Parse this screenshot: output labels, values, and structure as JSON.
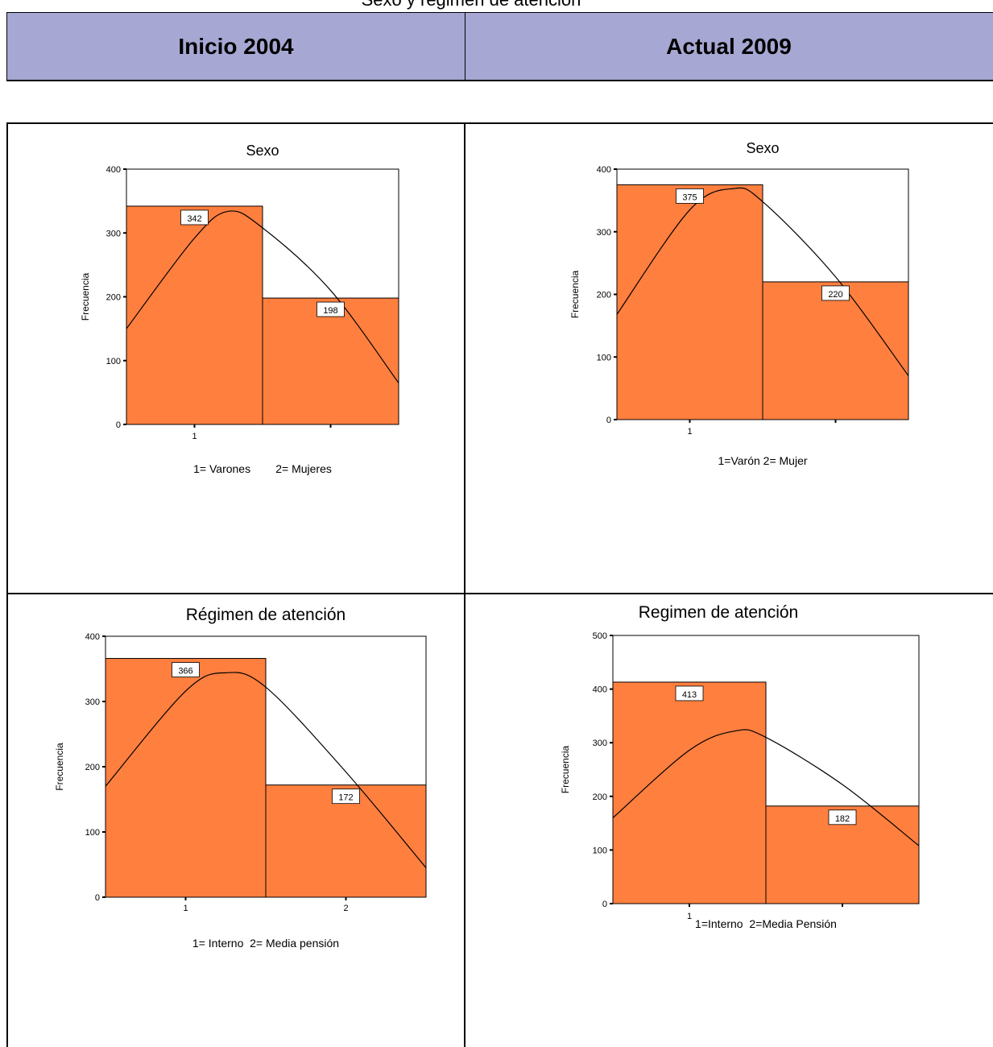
{
  "page_title": "Sexo y régimen de atención",
  "header": {
    "left": "Inicio 2004",
    "right": "Actual 2009"
  },
  "colors": {
    "header_bg": "#a7a7d3",
    "bar": "#ff7f3f",
    "line": "#000000"
  },
  "chart_data": [
    {
      "type": "bar",
      "title": "Sexo",
      "ylabel": "Frecuencia",
      "xlabel": "1= Varones        2= Mujeres",
      "categories": [
        "1",
        "2"
      ],
      "tick_labels": [
        "1",
        ""
      ],
      "values": [
        342,
        198
      ],
      "ylim": [
        0,
        400
      ],
      "yticks": [
        0,
        100,
        200,
        300,
        400
      ],
      "normal_curve": true,
      "curve": [
        [
          0.5,
          150
        ],
        [
          1.0,
          292
        ],
        [
          1.25,
          334
        ],
        [
          1.5,
          308
        ],
        [
          2.0,
          210
        ],
        [
          2.5,
          65
        ]
      ]
    },
    {
      "type": "bar",
      "title": "Sexo",
      "ylabel": "Frecuencia",
      "xlabel": "1=Varón 2= Mujer",
      "categories": [
        "1",
        "2"
      ],
      "tick_labels": [
        "1",
        ""
      ],
      "values": [
        375,
        220
      ],
      "ylim": [
        0,
        400
      ],
      "yticks": [
        0,
        100,
        200,
        300,
        400
      ],
      "normal_curve": true,
      "curve": [
        [
          0.5,
          168
        ],
        [
          1.0,
          335
        ],
        [
          1.3,
          369
        ],
        [
          1.5,
          348
        ],
        [
          2.0,
          228
        ],
        [
          2.5,
          70
        ]
      ]
    },
    {
      "type": "bar",
      "title": "Régimen de atención",
      "ylabel": "Frecuencia",
      "xlabel": "1= Interno  2= Media pensión",
      "categories": [
        "1",
        "2"
      ],
      "tick_labels": [
        "1",
        "2"
      ],
      "values": [
        366,
        172
      ],
      "ylim": [
        0,
        400
      ],
      "yticks": [
        0,
        100,
        200,
        300,
        400
      ],
      "normal_curve": true,
      "curve": [
        [
          0.5,
          170
        ],
        [
          1.0,
          316
        ],
        [
          1.25,
          344
        ],
        [
          1.5,
          322
        ],
        [
          2.0,
          192
        ],
        [
          2.5,
          45
        ]
      ]
    },
    {
      "type": "bar",
      "title": "Regimen de atención",
      "ylabel": "Frecuencia",
      "xlabel": "1=Interno  2=Media Pensión",
      "categories": [
        "1",
        "2"
      ],
      "tick_labels": [
        "1",
        ""
      ],
      "values": [
        413,
        182
      ],
      "ylim": [
        0,
        500
      ],
      "yticks": [
        0,
        100,
        200,
        300,
        400,
        500
      ],
      "normal_curve": true,
      "curve": [
        [
          0.5,
          160
        ],
        [
          1.0,
          286
        ],
        [
          1.3,
          322
        ],
        [
          1.5,
          310
        ],
        [
          2.0,
          222
        ],
        [
          2.5,
          108
        ]
      ]
    }
  ]
}
